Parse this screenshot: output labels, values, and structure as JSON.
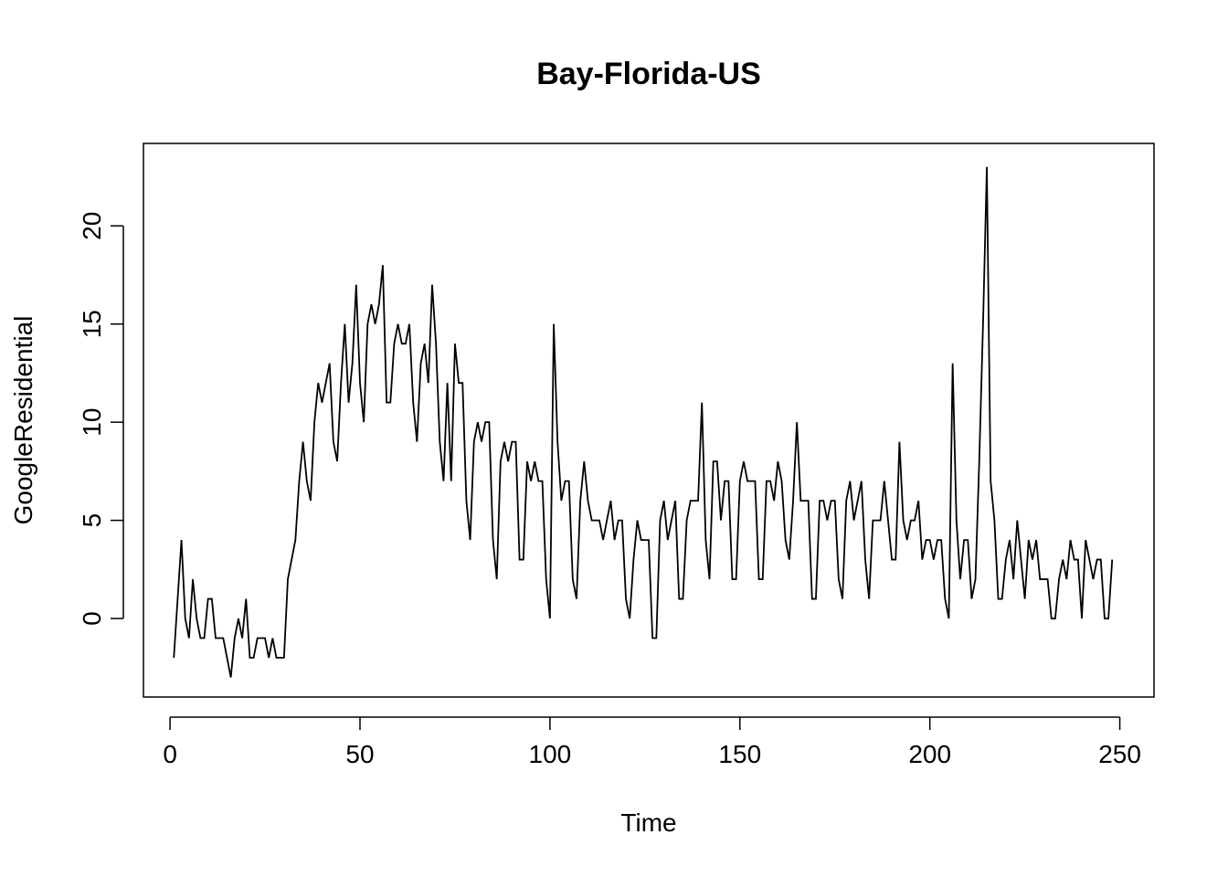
{
  "chart_data": {
    "type": "line",
    "title": "Bay-Florida-US",
    "xlabel": "Time",
    "ylabel": "GoogleResidential",
    "xlim": [
      -7,
      259
    ],
    "ylim": [
      -4,
      24.2
    ],
    "xticks": [
      0,
      50,
      100,
      150,
      200,
      250
    ],
    "yticks": [
      0,
      5,
      10,
      15,
      20
    ],
    "grid": false,
    "legend": "none",
    "series": [
      {
        "x_start": 1,
        "values": [
          -2,
          1,
          4,
          0,
          -1,
          2,
          0,
          -1,
          -1,
          1,
          1,
          -1,
          -1,
          -1,
          -2,
          -3,
          -1,
          0,
          -1,
          1,
          -2,
          -2,
          -1,
          -1,
          -1,
          -2,
          -1,
          -2,
          -2,
          -2,
          2,
          3,
          4,
          7,
          9,
          7,
          6,
          10,
          12,
          11,
          12,
          13,
          9,
          8,
          12,
          15,
          11,
          13,
          17,
          12,
          10,
          15,
          16,
          15,
          16,
          18,
          11,
          11,
          14,
          15,
          14,
          14,
          15,
          11,
          9,
          13,
          14,
          12,
          17,
          14,
          9,
          7,
          12,
          7,
          14,
          12,
          12,
          6,
          4,
          9,
          10,
          9,
          10,
          10,
          4,
          2,
          8,
          9,
          8,
          9,
          9,
          3,
          3,
          8,
          7,
          8,
          7,
          7,
          2,
          0,
          15,
          9,
          6,
          7,
          7,
          2,
          1,
          6,
          8,
          6,
          5,
          5,
          5,
          4,
          5,
          6,
          4,
          5,
          5,
          1,
          0,
          3,
          5,
          4,
          4,
          4,
          -1,
          -1,
          5,
          6,
          4,
          5,
          6,
          1,
          1,
          5,
          6,
          6,
          6,
          11,
          4,
          2,
          8,
          8,
          5,
          7,
          7,
          2,
          2,
          7,
          8,
          7,
          7,
          7,
          2,
          2,
          7,
          7,
          6,
          8,
          7,
          4,
          3,
          6,
          10,
          6,
          6,
          6,
          1,
          1,
          6,
          6,
          5,
          6,
          6,
          2,
          1,
          6,
          7,
          5,
          6,
          7,
          3,
          1,
          5,
          5,
          5,
          7,
          5,
          3,
          3,
          9,
          5,
          4,
          5,
          5,
          6,
          3,
          4,
          4,
          3,
          4,
          4,
          1,
          0,
          13,
          5,
          2,
          4,
          4,
          1,
          2,
          8,
          15,
          23,
          7,
          5,
          1,
          1,
          3,
          4,
          2,
          5,
          3,
          1,
          4,
          3,
          4,
          2,
          2,
          2,
          0,
          0,
          2,
          3,
          2,
          4,
          3,
          3,
          0,
          4,
          3,
          2,
          3,
          3,
          0,
          0,
          3
        ]
      }
    ]
  }
}
